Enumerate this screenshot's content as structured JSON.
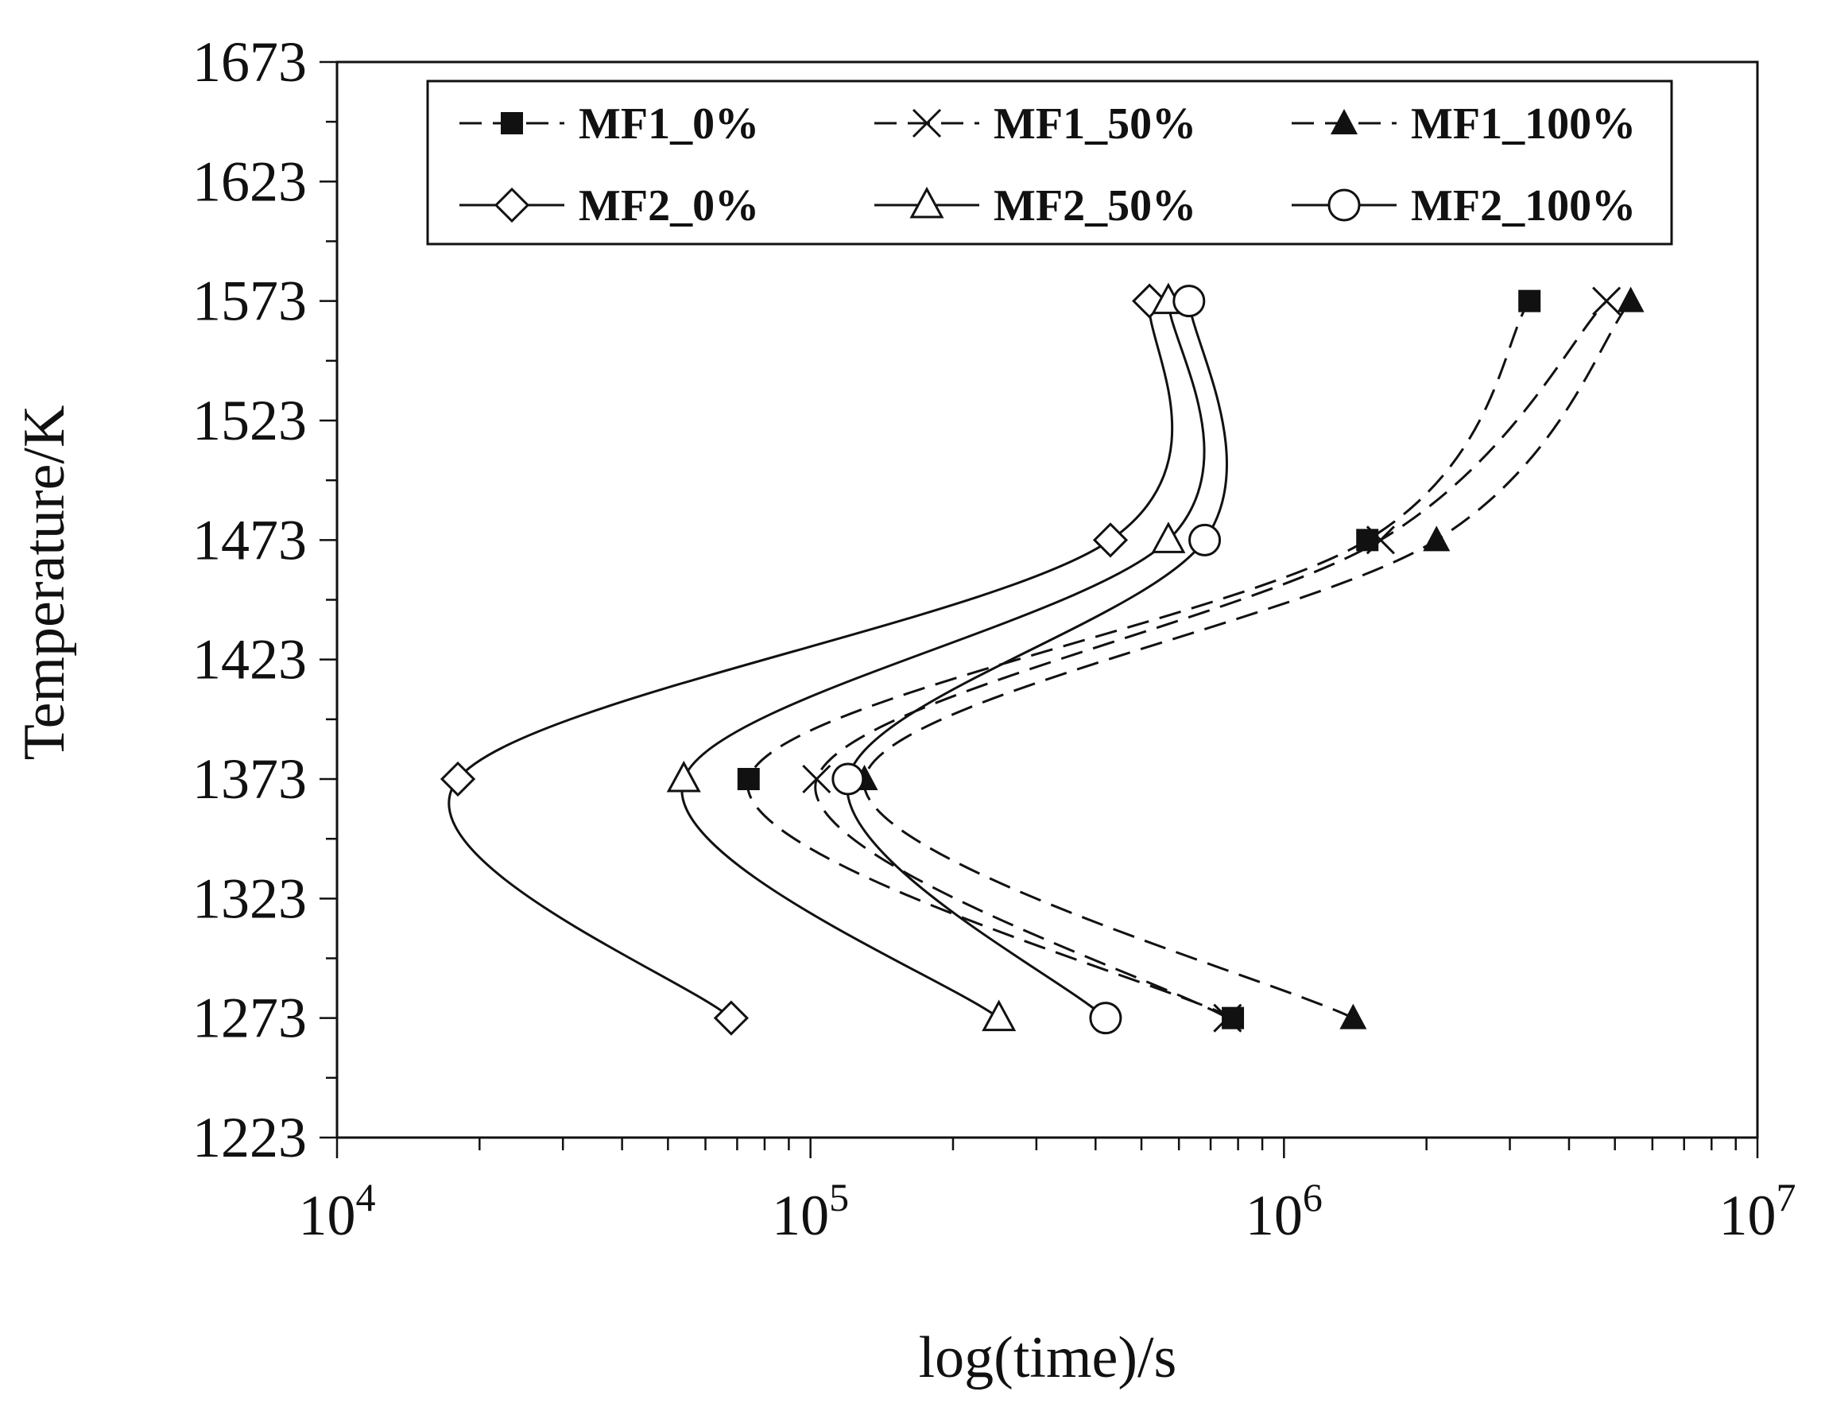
{
  "chart_data": {
    "type": "line",
    "title": "",
    "xlabel": "log(time)/s",
    "ylabel": "Temperature/K",
    "x_scale": "log",
    "xlim": [
      10000,
      10000000
    ],
    "ylim": [
      1223,
      1673
    ],
    "x_ticks": [
      {
        "value": 10000,
        "base": "10",
        "exp": "4"
      },
      {
        "value": 100000,
        "base": "10",
        "exp": "5"
      },
      {
        "value": 1000000,
        "base": "10",
        "exp": "6"
      },
      {
        "value": 10000000,
        "base": "10",
        "exp": "7"
      }
    ],
    "y_ticks": [
      1223,
      1273,
      1323,
      1373,
      1423,
      1473,
      1523,
      1573,
      1623,
      1673
    ],
    "legend_position": "top",
    "series": [
      {
        "name": "MF1_0%",
        "marker": "square-filled",
        "dash": "dashed",
        "points": [
          {
            "t": 1273,
            "x": 780000
          },
          {
            "t": 1373,
            "x": 74000
          },
          {
            "t": 1473,
            "x": 1500000
          },
          {
            "t": 1573,
            "x": 3300000
          }
        ]
      },
      {
        "name": "MF1_50%",
        "marker": "cross",
        "dash": "dashed",
        "points": [
          {
            "t": 1273,
            "x": 760000
          },
          {
            "t": 1373,
            "x": 103000
          },
          {
            "t": 1473,
            "x": 1600000
          },
          {
            "t": 1573,
            "x": 4800000
          }
        ]
      },
      {
        "name": "MF1_100%",
        "marker": "triangle-filled",
        "dash": "dashed",
        "points": [
          {
            "t": 1273,
            "x": 1400000
          },
          {
            "t": 1373,
            "x": 130000
          },
          {
            "t": 1473,
            "x": 2100000
          },
          {
            "t": 1573,
            "x": 5400000
          }
        ]
      },
      {
        "name": "MF2_0%",
        "marker": "diamond-open",
        "dash": "solid",
        "points": [
          {
            "t": 1273,
            "x": 68000
          },
          {
            "t": 1373,
            "x": 18000
          },
          {
            "t": 1473,
            "x": 430000
          },
          {
            "t": 1573,
            "x": 520000
          }
        ]
      },
      {
        "name": "MF2_50%",
        "marker": "triangle-open",
        "dash": "solid",
        "points": [
          {
            "t": 1273,
            "x": 250000
          },
          {
            "t": 1373,
            "x": 54000
          },
          {
            "t": 1473,
            "x": 570000
          },
          {
            "t": 1573,
            "x": 570000
          }
        ]
      },
      {
        "name": "MF2_100%",
        "marker": "circle-open",
        "dash": "solid",
        "points": [
          {
            "t": 1273,
            "x": 420000
          },
          {
            "t": 1373,
            "x": 120000
          },
          {
            "t": 1473,
            "x": 680000
          },
          {
            "t": 1573,
            "x": 630000
          }
        ]
      }
    ]
  }
}
